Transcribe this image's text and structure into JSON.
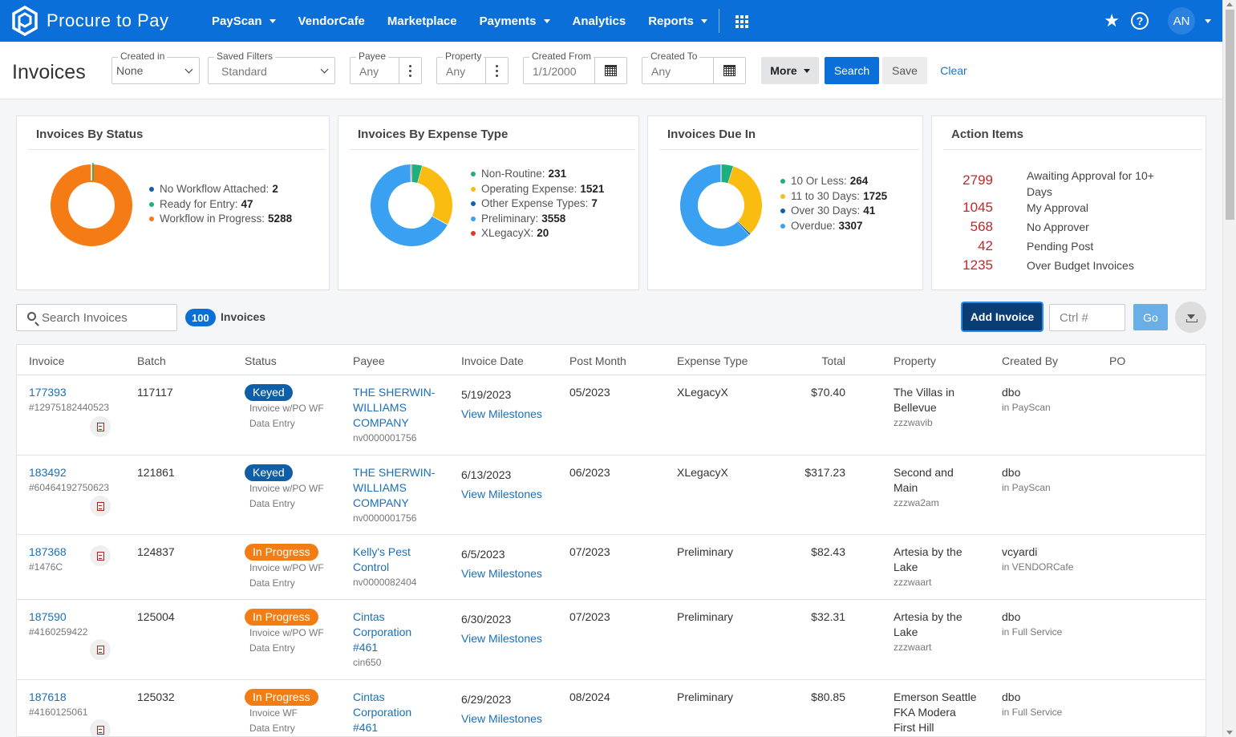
{
  "nav": {
    "brand": "Procure to Pay",
    "items": [
      {
        "label": "PayScan",
        "dropdown": true
      },
      {
        "label": "VendorCafe",
        "dropdown": false
      },
      {
        "label": "Marketplace",
        "dropdown": false
      },
      {
        "label": "Payments",
        "dropdown": true
      },
      {
        "label": "Analytics",
        "dropdown": false
      },
      {
        "label": "Reports",
        "dropdown": true
      }
    ],
    "user_initials": "AN",
    "star_icon": "★",
    "help_icon": "?"
  },
  "filters": {
    "page_title": "Invoices",
    "created_in": {
      "label": "Created in",
      "value": "None"
    },
    "saved_filters": {
      "label": "Saved Filters",
      "value": "Standard"
    },
    "payee": {
      "label": "Payee",
      "value": "Any"
    },
    "property": {
      "label": "Property",
      "value": "Any"
    },
    "created_from": {
      "label": "Created From",
      "value": "1/1/2000"
    },
    "created_to": {
      "label": "Created To",
      "value": "Any"
    },
    "more_label": "More",
    "search_label": "Search",
    "save_label": "Save",
    "clear_label": "Clear"
  },
  "cards": {
    "status": {
      "title": "Invoices By Status",
      "legend": [
        {
          "label": "No Workflow Attached:",
          "value": "2",
          "color": "#1060b0"
        },
        {
          "label": "Ready for Entry:",
          "value": "47",
          "color": "#1fae7d"
        },
        {
          "label": "Workflow in Progress:",
          "value": "5288",
          "color": "#f57b15"
        }
      ]
    },
    "expense": {
      "title": "Invoices By Expense Type",
      "legend": [
        {
          "label": "Non-Routine:",
          "value": "231",
          "color": "#1fae7d"
        },
        {
          "label": "Operating Expense:",
          "value": "1521",
          "color": "#fbbc11"
        },
        {
          "label": "Other Expense Types:",
          "value": "7",
          "color": "#1060b0"
        },
        {
          "label": "Preliminary:",
          "value": "3558",
          "color": "#3aa1f2"
        },
        {
          "label": "XLegacyX:",
          "value": "20",
          "color": "#e8332a"
        }
      ]
    },
    "due": {
      "title": "Invoices Due In",
      "legend": [
        {
          "label": "10 Or Less:",
          "value": "264",
          "color": "#1fae7d"
        },
        {
          "label": "11 to 30 Days:",
          "value": "1725",
          "color": "#fbbc11"
        },
        {
          "label": "Over 30 Days:",
          "value": "41",
          "color": "#1060b0"
        },
        {
          "label": "Overdue:",
          "value": "3307",
          "color": "#3aa1f2"
        }
      ]
    },
    "actions": {
      "title": "Action Items",
      "items": [
        {
          "count": "2799",
          "label": "Awaiting Approval for 10+ Days"
        },
        {
          "count": "1045",
          "label": "My Approval"
        },
        {
          "count": "568",
          "label": "No Approver"
        },
        {
          "count": "42",
          "label": "Pending Post"
        },
        {
          "count": "1235",
          "label": "Over Budget Invoices"
        }
      ]
    }
  },
  "toolbar": {
    "search_placeholder": "Search Invoices",
    "count": "100",
    "count_label": "Invoices",
    "add_label": "Add Invoice",
    "ctrl_placeholder": "Ctrl #",
    "go_label": "Go"
  },
  "table": {
    "columns": [
      "Invoice",
      "Batch",
      "Status",
      "Payee",
      "Invoice Date",
      "Post Month",
      "Expense Type",
      "Total",
      "Property",
      "Created By",
      "PO"
    ],
    "rows": [
      {
        "invoice": "177393",
        "ref": "#12975182440523",
        "batch": "117117",
        "status": "Keyed",
        "status_type": "keyed",
        "wf": "Invoice w/PO WF",
        "step": "Data Entry",
        "payee": [
          "THE SHERWIN-",
          "WILLIAMS",
          "COMPANY"
        ],
        "payee_id": "nv0000001756",
        "date": "5/19/2023",
        "milestones": "View Milestones",
        "post_month": "05/2023",
        "expense": "XLegacyX",
        "total": "$70.40",
        "property": [
          "The Villas in",
          "Bellevue"
        ],
        "property_code": "zzzwavib",
        "created_by": "dbo",
        "created_in": "in PayScan"
      },
      {
        "invoice": "183492",
        "ref": "#60464192750623",
        "batch": "121861",
        "status": "Keyed",
        "status_type": "keyed",
        "wf": "Invoice w/PO WF",
        "step": "Data Entry",
        "payee": [
          "THE SHERWIN-",
          "WILLIAMS",
          "COMPANY"
        ],
        "payee_id": "nv0000001756",
        "date": "6/13/2023",
        "milestones": "View Milestones",
        "post_month": "06/2023",
        "expense": "XLegacyX",
        "total": "$317.23",
        "property": [
          "Second and",
          "Main"
        ],
        "property_code": "zzzwa2am",
        "created_by": "dbo",
        "created_in": "in PayScan"
      },
      {
        "invoice": "187368",
        "ref": "#1476C",
        "batch": "124837",
        "status": "In Progress",
        "status_type": "progress",
        "wf": "Invoice w/PO WF",
        "step": "Data Entry",
        "payee": [
          "Kelly's Pest",
          "Control"
        ],
        "payee_id": "nv0000082404",
        "date": "6/5/2023",
        "milestones": "View Milestones",
        "post_month": "07/2023",
        "expense": "Preliminary",
        "total": "$82.43",
        "property": [
          "Artesia by the",
          "Lake"
        ],
        "property_code": "zzzwaart",
        "created_by": "vcyardi",
        "created_in": "in VENDORCafe"
      },
      {
        "invoice": "187590",
        "ref": "#4160259422",
        "batch": "125004",
        "status": "In Progress",
        "status_type": "progress",
        "wf": "Invoice w/PO WF",
        "step": "Data Entry",
        "payee": [
          "Cintas",
          "Corporation",
          "#461"
        ],
        "payee_id": "cin650",
        "date": "6/30/2023",
        "milestones": "View Milestones",
        "post_month": "07/2023",
        "expense": "Preliminary",
        "total": "$32.31",
        "property": [
          "Artesia by the",
          "Lake"
        ],
        "property_code": "zzzwaart",
        "created_by": "dbo",
        "created_in": "in Full Service"
      },
      {
        "invoice": "187618",
        "ref": "#4160125061",
        "batch": "125032",
        "status": "In Progress",
        "status_type": "progress",
        "wf": "Invoice WF",
        "step": "Data Entry",
        "payee": [
          "Cintas",
          "Corporation",
          "#461"
        ],
        "payee_id": "",
        "date": "6/29/2023",
        "milestones": "View Milestones",
        "post_month": "08/2024",
        "expense": "Preliminary",
        "total": "$80.85",
        "property": [
          "Emerson Seattle",
          "FKA Modera",
          "First Hill"
        ],
        "property_code": "",
        "created_by": "dbo",
        "created_in": "in Full Service"
      }
    ]
  }
}
